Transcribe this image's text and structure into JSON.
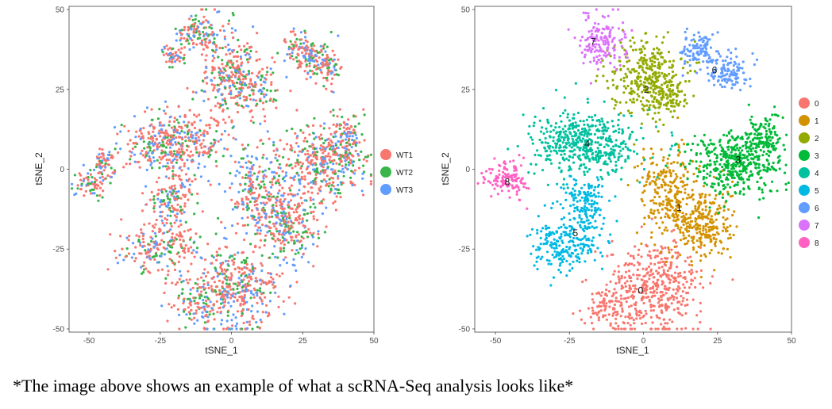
{
  "caption": "*The image above shows an example of what a scRNA-Seq analysis looks like*",
  "chart_data": [
    {
      "type": "scatter",
      "xlabel": "tSNE_1",
      "ylabel": "tSNE_2",
      "xlim": [
        -57,
        50
      ],
      "ylim": [
        -51,
        51
      ],
      "xticks": [
        -50,
        -25,
        0,
        25,
        50
      ],
      "yticks": [
        -50,
        -25,
        0,
        25,
        50
      ],
      "grid": false,
      "legend_position": "right",
      "series": [
        {
          "name": "WT1",
          "color": "#F8766D"
        },
        {
          "name": "WT2",
          "color": "#39B54A"
        },
        {
          "name": "WT3",
          "color": "#619CFF"
        }
      ],
      "regions": [
        {
          "x": -12,
          "y": 43,
          "sx": 3.5,
          "sy": 3,
          "n": 110
        },
        {
          "x": -20,
          "y": 36,
          "sx": 2.5,
          "sy": 2,
          "n": 50
        },
        {
          "x": -1,
          "y": 30,
          "sx": 5,
          "sy": 7,
          "n": 260
        },
        {
          "x": 8,
          "y": 26,
          "sx": 4,
          "sy": 4,
          "n": 110
        },
        {
          "x": 25,
          "y": 37,
          "sx": 4,
          "sy": 3,
          "n": 130
        },
        {
          "x": 33,
          "y": 32,
          "sx": 3,
          "sy": 3,
          "n": 90
        },
        {
          "x": -45,
          "y": 2,
          "sx": 2.5,
          "sy": 2.5,
          "n": 70
        },
        {
          "x": -50,
          "y": -5,
          "sx": 3,
          "sy": 2,
          "n": 60
        },
        {
          "x": -20,
          "y": 8,
          "sx": 9,
          "sy": 5,
          "n": 420
        },
        {
          "x": 32,
          "y": 2,
          "sx": 8,
          "sy": 6,
          "n": 420
        },
        {
          "x": 40,
          "y": 10,
          "sx": 3,
          "sy": 4,
          "n": 90
        },
        {
          "x": 8,
          "y": -7,
          "sx": 5,
          "sy": 7,
          "n": 220
        },
        {
          "x": 20,
          "y": -17,
          "sx": 5,
          "sy": 6,
          "n": 260
        },
        {
          "x": -20,
          "y": -8,
          "sx": 4,
          "sy": 3,
          "n": 80
        },
        {
          "x": -22,
          "y": -14,
          "sx": 3,
          "sy": 3,
          "n": 60
        },
        {
          "x": -25,
          "y": -25,
          "sx": 7,
          "sy": 4,
          "n": 200
        },
        {
          "x": 2,
          "y": -37,
          "sx": 8,
          "sy": 7,
          "n": 420
        },
        {
          "x": -12,
          "y": -43,
          "sx": 4,
          "sy": 3,
          "n": 90
        }
      ]
    },
    {
      "type": "scatter",
      "xlabel": "tSNE_1",
      "ylabel": "tSNE_2",
      "xlim": [
        -57,
        50
      ],
      "ylim": [
        -51,
        51
      ],
      "xticks": [
        -50,
        -25,
        0,
        25,
        50
      ],
      "yticks": [
        -50,
        -25,
        0,
        25,
        50
      ],
      "grid": false,
      "legend_position": "right",
      "series": [
        {
          "name": "0",
          "color": "#F8766D",
          "label_x": -1,
          "label_y": -38,
          "regions": [
            {
              "x": 4,
              "y": -37,
              "sx": 8,
              "sy": 7,
              "n": 440
            },
            {
              "x": -12,
              "y": -43,
              "sx": 4,
              "sy": 3,
              "n": 90
            }
          ]
        },
        {
          "name": "1",
          "color": "#D39200",
          "label_x": 12,
          "label_y": -12,
          "regions": [
            {
              "x": 8,
              "y": -7,
              "sx": 5,
              "sy": 7,
              "n": 230
            },
            {
              "x": 20,
              "y": -17,
              "sx": 5,
              "sy": 6,
              "n": 280
            }
          ]
        },
        {
          "name": "2",
          "color": "#93AA00",
          "label_x": 1,
          "label_y": 25,
          "regions": [
            {
              "x": 1,
              "y": 29,
              "sx": 6,
              "sy": 6,
              "n": 340
            },
            {
              "x": 9,
              "y": 23,
              "sx": 3,
              "sy": 3,
              "n": 70
            }
          ]
        },
        {
          "name": "3",
          "color": "#00BA38",
          "label_x": 32,
          "label_y": 3,
          "regions": [
            {
              "x": 31,
              "y": 2,
              "sx": 8,
              "sy": 5,
              "n": 430
            },
            {
              "x": 40,
              "y": 10,
              "sx": 3,
              "sy": 4,
              "n": 110
            }
          ]
        },
        {
          "name": "4",
          "color": "#00C19F",
          "label_x": -19,
          "label_y": 8,
          "regions": [
            {
              "x": -19,
              "y": 8,
              "sx": 9,
              "sy": 5,
              "n": 480
            }
          ]
        },
        {
          "name": "5",
          "color": "#00B9E3",
          "label_x": -23,
          "label_y": -20,
          "regions": [
            {
              "x": -20,
              "y": -8,
              "sx": 4,
              "sy": 3,
              "n": 90
            },
            {
              "x": -20,
              "y": -14,
              "sx": 3,
              "sy": 3,
              "n": 60
            },
            {
              "x": -26,
              "y": -24,
              "sx": 6,
              "sy": 4,
              "n": 220
            }
          ]
        },
        {
          "name": "6",
          "color": "#619CFF",
          "label_x": 24,
          "label_y": 31,
          "regions": [
            {
              "x": 19,
              "y": 37,
              "sx": 3,
              "sy": 3,
              "n": 110
            },
            {
              "x": 29,
              "y": 31,
              "sx": 3,
              "sy": 3,
              "n": 110
            }
          ]
        },
        {
          "name": "7",
          "color": "#DB72FB",
          "label_x": -17,
          "label_y": 40,
          "regions": [
            {
              "x": -14,
              "y": 40,
              "sx": 4,
              "sy": 4,
              "n": 160
            }
          ]
        },
        {
          "name": "8",
          "color": "#FF61C3",
          "label_x": -46,
          "label_y": -4,
          "regions": [
            {
              "x": -46,
              "y": -3,
              "sx": 3.5,
              "sy": 3,
              "n": 120
            }
          ]
        }
      ]
    }
  ]
}
